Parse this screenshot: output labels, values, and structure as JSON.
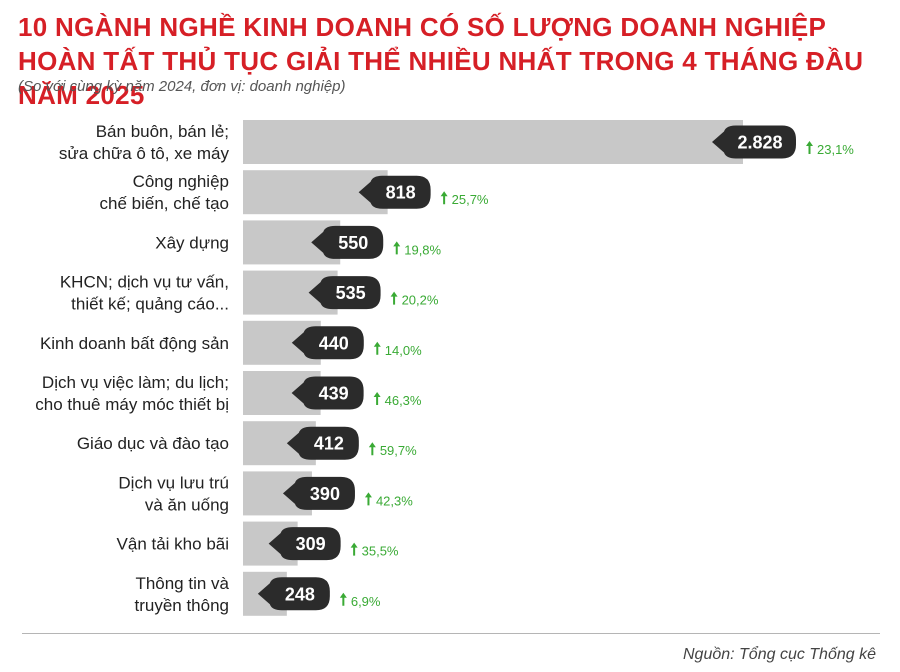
{
  "header": {
    "title": "10 NGÀNH NGHỀ KINH DOANH CÓ SỐ LƯỢNG DOANH NGHIỆP HOÀN TẤT THỦ TỤC GIẢI THỂ NHIỀU NHẤT TRONG 4 THÁNG ĐẦU NĂM 2025",
    "subtitle": "(So với cùng kỳ năm 2024, đơn vị: doanh nghiệp)"
  },
  "footer": {
    "source": "Nguồn: Tổng cục Thống kê"
  },
  "colors": {
    "title": "#d61f26",
    "bar": "#c8c8c8",
    "bubble": "#2b2b2b",
    "bubble_text": "#ffffff",
    "growth": "#3aaa35",
    "label": "#222222"
  },
  "chart_data": {
    "type": "bar",
    "orientation": "horizontal",
    "categories": [
      [
        "Bán buôn, bán lẻ;",
        "sửa chữa ô tô, xe máy"
      ],
      [
        "Công nghiệp",
        "chế biến, chế tạo"
      ],
      [
        "Xây dựng"
      ],
      [
        "KHCN; dịch vụ tư vấn,",
        "thiết kế; quảng cáo..."
      ],
      [
        "Kinh doanh bất động sản"
      ],
      [
        "Dịch vụ việc làm; du lịch;",
        "cho thuê máy móc thiết bị"
      ],
      [
        "Giáo dục và đào tạo"
      ],
      [
        "Dịch vụ lưu trú",
        "và ăn uống"
      ],
      [
        "Vận tải kho bãi"
      ],
      [
        "Thông tin và",
        "truyền thông"
      ]
    ],
    "values": [
      2828,
      818,
      550,
      535,
      440,
      439,
      412,
      390,
      309,
      248
    ],
    "value_labels": [
      "2.828",
      "818",
      "550",
      "535",
      "440",
      "439",
      "412",
      "390",
      "309",
      "248"
    ],
    "growth": [
      "23,1%",
      "25,7%",
      "19,8%",
      "20,2%",
      "14,0%",
      "46,3%",
      "59,7%",
      "42,3%",
      "35,5%",
      "6,9%"
    ],
    "growth_direction": "up",
    "axis_visible": false,
    "grid": false
  }
}
